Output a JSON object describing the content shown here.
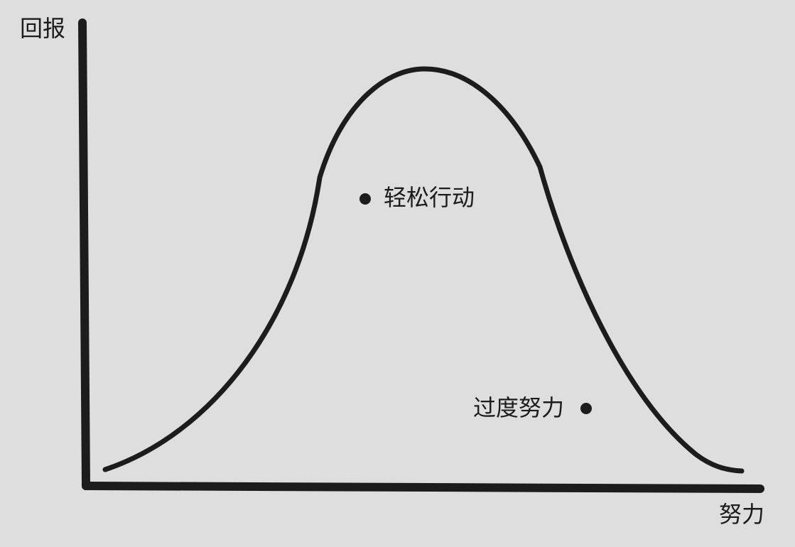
{
  "diagram": {
    "y_axis_label": "回报",
    "x_axis_label": "努力",
    "annotations": [
      {
        "label": "轻松行动"
      },
      {
        "label": "过度努力"
      }
    ],
    "colors": {
      "background": "#dedede",
      "ink": "#1c1c1c"
    }
  }
}
